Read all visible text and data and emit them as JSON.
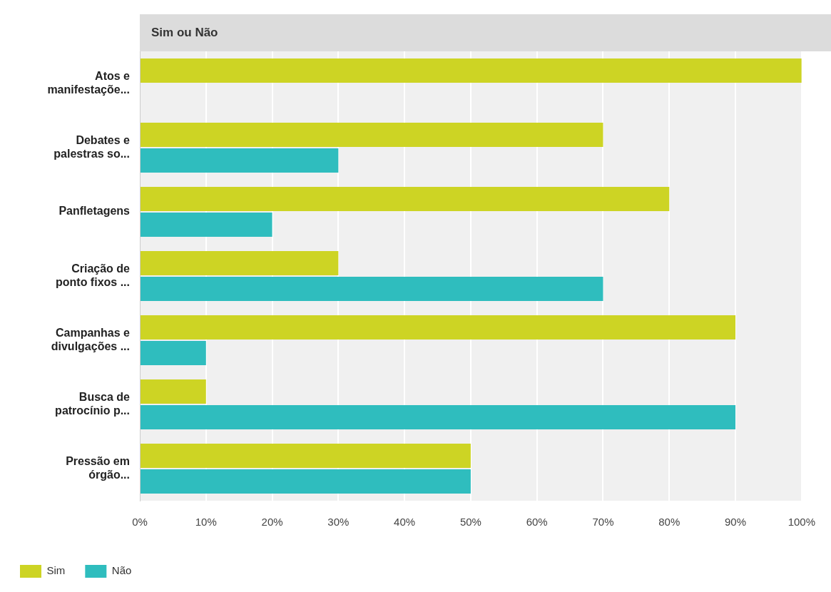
{
  "chart_data": {
    "type": "bar",
    "orientation": "horizontal",
    "title": "Sim ou Não",
    "categories": [
      "Atos e\nmanifestaçõe...",
      "Debates e\npalestras so...",
      "Panfletagens",
      "Criação de\nponto fixos ...",
      "Campanhas e\ndivulgações ...",
      "Busca de\npatrocínio p...",
      "Pressão em\nórgão..."
    ],
    "series": [
      {
        "name": "Sim",
        "color": "#cdd424",
        "values": [
          100,
          70,
          80,
          30,
          90,
          10,
          50
        ]
      },
      {
        "name": "Não",
        "color": "#2fbdbe",
        "values": [
          0,
          30,
          20,
          70,
          10,
          90,
          50
        ]
      }
    ],
    "xlim": [
      0,
      100
    ],
    "xticks": [
      {
        "value": 0,
        "label": "0%"
      },
      {
        "value": 10,
        "label": "10%"
      },
      {
        "value": 20,
        "label": "20%"
      },
      {
        "value": 30,
        "label": "30%"
      },
      {
        "value": 40,
        "label": "40%"
      },
      {
        "value": 50,
        "label": "50%"
      },
      {
        "value": 60,
        "label": "60%"
      },
      {
        "value": 70,
        "label": "70%"
      },
      {
        "value": 80,
        "label": "80%"
      },
      {
        "value": 90,
        "label": "90%"
      },
      {
        "value": 100,
        "label": "100%"
      }
    ],
    "grid": "x",
    "legend": "bottom left"
  }
}
